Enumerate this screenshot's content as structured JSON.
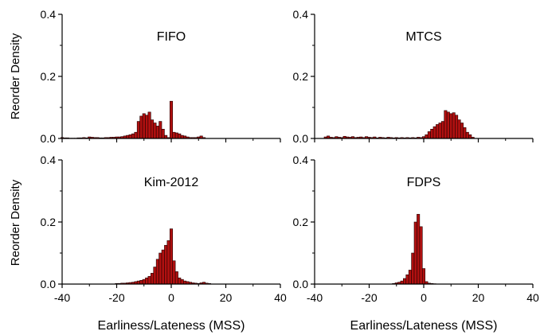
{
  "figure": {
    "ylabel": "Reorder Density",
    "xlabel": "Earliness/Lateness (MSS)",
    "bar_color": "#b01010",
    "bar_edge": "#200000"
  },
  "chart_data": [
    {
      "type": "bar",
      "title": "FIFO",
      "xlabel": "",
      "ylabel": "Reorder Density",
      "xlim": [
        -40,
        40
      ],
      "ylim": [
        0,
        0.4
      ],
      "x_ticks": [
        "-40",
        "-20",
        "0",
        "20",
        "40"
      ],
      "y_ticks": [
        "0.0",
        "0.2",
        "0.4"
      ],
      "show_x_ticklabels": false,
      "bins": [
        -40,
        -39,
        -38,
        -37,
        -36,
        -35,
        -34,
        -33,
        -32,
        -31,
        -30,
        -29,
        -28,
        -27,
        -26,
        -25,
        -24,
        -23,
        -22,
        -21,
        -20,
        -19,
        -18,
        -17,
        -16,
        -15,
        -14,
        -13,
        -12,
        -11,
        -10,
        -9,
        -8,
        -7,
        -6,
        -5,
        -4,
        -3,
        -2,
        -1,
        0,
        1,
        2,
        3,
        4,
        5,
        6,
        7,
        8,
        9,
        10,
        11,
        12
      ],
      "values": [
        0.003,
        0.002,
        0.002,
        0.001,
        0.001,
        0.001,
        0.002,
        0.002,
        0.003,
        0.002,
        0.005,
        0.004,
        0.003,
        0.003,
        0.002,
        0.002,
        0.003,
        0.003,
        0.004,
        0.004,
        0.005,
        0.005,
        0.006,
        0.008,
        0.01,
        0.012,
        0.015,
        0.02,
        0.055,
        0.072,
        0.08,
        0.075,
        0.085,
        0.06,
        0.05,
        0.04,
        0.055,
        0.03,
        0.01,
        0.003,
        0.12,
        0.02,
        0.018,
        0.015,
        0.01,
        0.008,
        0.005,
        0.003,
        0.003,
        0.003,
        0.005,
        0.008,
        0.003
      ]
    },
    {
      "type": "bar",
      "title": "MTCS",
      "xlabel": "",
      "ylabel": "",
      "xlim": [
        -40,
        40
      ],
      "ylim": [
        0,
        0.4
      ],
      "x_ticks": [
        "-40",
        "-20",
        "0",
        "20",
        "40"
      ],
      "y_ticks": [
        "0.0",
        "0.2",
        "0.4"
      ],
      "show_x_ticklabels": false,
      "bins": [
        -36,
        -35,
        -34,
        -33,
        -32,
        -31,
        -30,
        -29,
        -28,
        -27,
        -26,
        -25,
        -24,
        -23,
        -22,
        -21,
        -20,
        -19,
        -18,
        -17,
        -16,
        -15,
        -14,
        -13,
        -12,
        -11,
        -10,
        -9,
        -8,
        -7,
        -6,
        -5,
        -4,
        -3,
        -2,
        -1,
        0,
        1,
        2,
        3,
        4,
        5,
        6,
        7,
        8,
        9,
        10,
        11,
        12,
        13,
        14,
        15,
        16,
        17,
        18
      ],
      "values": [
        0.005,
        0.008,
        0.004,
        0.003,
        0.006,
        0.004,
        0.003,
        0.007,
        0.005,
        0.004,
        0.006,
        0.003,
        0.004,
        0.005,
        0.003,
        0.006,
        0.004,
        0.003,
        0.005,
        0.002,
        0.004,
        0.003,
        0.002,
        0.004,
        0.003,
        0.002,
        0.003,
        0.002,
        0.003,
        0.002,
        0.003,
        0.002,
        0.003,
        0.002,
        0.004,
        0.003,
        0.006,
        0.012,
        0.022,
        0.03,
        0.038,
        0.045,
        0.05,
        0.055,
        0.09,
        0.085,
        0.08,
        0.083,
        0.075,
        0.06,
        0.05,
        0.035,
        0.02,
        0.012,
        0.004
      ]
    },
    {
      "type": "bar",
      "title": "Kim-2012",
      "xlabel": "Earliness/Lateness (MSS)",
      "ylabel": "Reorder Density",
      "xlim": [
        -40,
        40
      ],
      "ylim": [
        0,
        0.4
      ],
      "x_ticks": [
        "-40",
        "-20",
        "0",
        "20",
        "40"
      ],
      "y_ticks": [
        "0.0",
        "0.2",
        "0.4"
      ],
      "show_x_ticklabels": true,
      "bins": [
        -20,
        -19,
        -18,
        -17,
        -16,
        -15,
        -14,
        -13,
        -12,
        -11,
        -10,
        -9,
        -8,
        -7,
        -6,
        -5,
        -4,
        -3,
        -2,
        -1,
        0,
        1,
        2,
        3,
        4,
        5,
        6,
        7,
        8,
        9,
        10,
        11,
        12,
        13,
        14
      ],
      "values": [
        0.002,
        0.002,
        0.003,
        0.003,
        0.004,
        0.005,
        0.006,
        0.008,
        0.01,
        0.012,
        0.015,
        0.02,
        0.025,
        0.035,
        0.055,
        0.08,
        0.1,
        0.11,
        0.125,
        0.14,
        0.178,
        0.075,
        0.04,
        0.02,
        0.015,
        0.01,
        0.008,
        0.006,
        0.004,
        0.003,
        0.002,
        0.004,
        0.006,
        0.003,
        0.002
      ]
    },
    {
      "type": "bar",
      "title": "FDPS",
      "xlabel": "Earliness/Lateness (MSS)",
      "ylabel": "",
      "xlim": [
        -40,
        40
      ],
      "ylim": [
        0,
        0.4
      ],
      "x_ticks": [
        "-40",
        "-20",
        "0",
        "20",
        "40"
      ],
      "y_ticks": [
        "0.0",
        "0.2",
        "0.4"
      ],
      "show_x_ticklabels": true,
      "bins": [
        -11,
        -10,
        -9,
        -8,
        -7,
        -6,
        -5,
        -4,
        -3,
        -2,
        -1,
        0,
        1,
        2,
        3,
        4
      ],
      "values": [
        0.002,
        0.004,
        0.006,
        0.01,
        0.018,
        0.03,
        0.045,
        0.1,
        0.2,
        0.225,
        0.185,
        0.05,
        0.008,
        0.003,
        0.002,
        0.001
      ]
    }
  ]
}
